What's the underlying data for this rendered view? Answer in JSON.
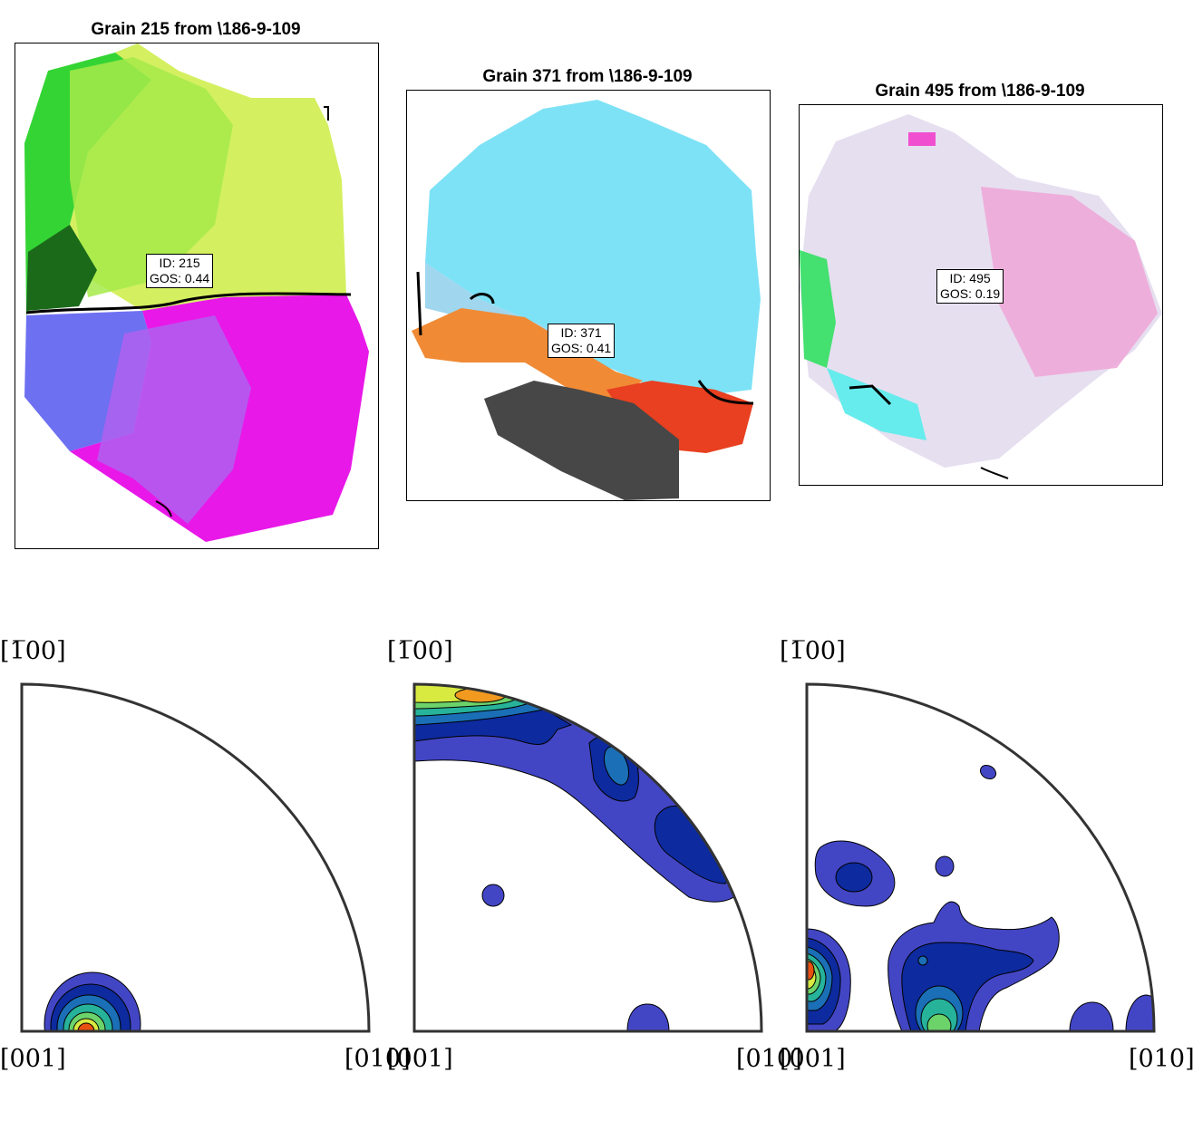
{
  "grains": [
    {
      "title": "Grain 215 from \\186-9-109",
      "id_line": "ID: 215",
      "gos_line": "GOS: 0.44",
      "colors": {
        "top_left": "#34d434",
        "top_right": "#d4f060",
        "bottom_left": "#6e70f2",
        "bottom_right": "#e818e8",
        "accent": "#1a6a1a"
      }
    },
    {
      "title": "Grain 371 from \\186-9-109",
      "id_line": "ID: 371",
      "gos_line": "GOS: 0.41",
      "colors": {
        "top": "#7ee2f6",
        "mid": "#a0d6ee",
        "orange": "#f08a34",
        "red": "#e84020",
        "dark": "#474747"
      }
    },
    {
      "title": "Grain 495 from \\186-9-109",
      "id_line": "ID: 495",
      "gos_line": "GOS: 0.19",
      "colors": {
        "base": "#e6dff0",
        "pink": "#eea8d8",
        "green": "#44e070",
        "cyan": "#66ecec",
        "magenta": "#f050d0"
      }
    }
  ],
  "pole_figures": [
    {
      "top_label": "[1̅00]",
      "left_label": "[001]",
      "right_label": "[010]"
    },
    {
      "top_label": "[1̅00]",
      "left_label": "[001]",
      "right_label": "[010]"
    },
    {
      "top_label": "[1̅00]",
      "left_label": "[001]",
      "right_label": "[010]"
    }
  ],
  "contour_colors": [
    "#4346c4",
    "#0d2a9e",
    "#1b6fb6",
    "#26b39a",
    "#6cd36a",
    "#d8ea40",
    "#f29a20",
    "#e85010"
  ],
  "outline_color": "#333333"
}
